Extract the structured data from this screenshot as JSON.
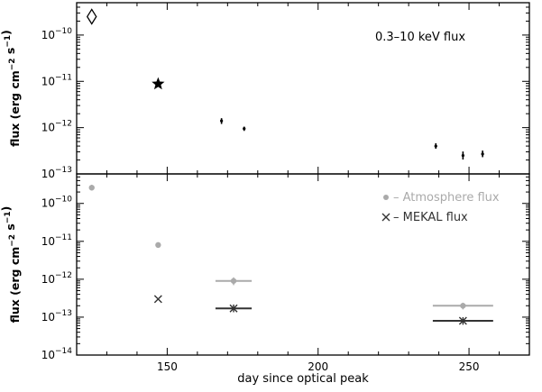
{
  "chart_data": [
    {
      "id": "top",
      "type": "scatter",
      "ylabel": "flux (erg cm⁻² s⁻¹)",
      "xlabel": "",
      "xlim": [
        120,
        270
      ],
      "ylim": [
        1e-13,
        5e-10
      ],
      "yscale": "log",
      "xticks": [
        150,
        200,
        250
      ],
      "yticks": [
        {
          "value": 1e-10,
          "label": "10⁻¹⁰"
        },
        {
          "value": 1e-11,
          "label": "10⁻¹¹"
        },
        {
          "value": 1e-12,
          "label": "10⁻¹²"
        },
        {
          "value": 1e-13,
          "label": "10⁻¹³"
        }
      ],
      "annotations": [
        {
          "text": "0.3–10 keV flux",
          "position": "top-right"
        }
      ],
      "series": [
        {
          "marker": "diamond",
          "points": [
            {
              "x": 125,
              "y": 2.5e-10
            }
          ]
        },
        {
          "marker": "star",
          "points": [
            {
              "x": 147,
              "y": 8.8e-12
            }
          ]
        },
        {
          "marker": "errorbar",
          "points": [
            {
              "x": 168,
              "y": 1.4e-12,
              "ylo": 1.2e-12,
              "yhi": 1.6e-12
            },
            {
              "x": 175.5,
              "y": 9.5e-13,
              "ylo": 8.5e-13,
              "yhi": 1.05e-12
            },
            {
              "x": 239,
              "y": 4e-13,
              "ylo": 3.5e-13,
              "yhi": 4.6e-13
            },
            {
              "x": 248,
              "y": 2.5e-13,
              "ylo": 2.05e-13,
              "yhi": 3.05e-13
            },
            {
              "x": 254.5,
              "y": 2.7e-13,
              "ylo": 2.3e-13,
              "yhi": 3.2e-13
            }
          ]
        }
      ]
    },
    {
      "id": "bottom",
      "type": "scatter",
      "ylabel": "flux (erg cm⁻² s⁻¹)",
      "xlabel": "day since optical peak",
      "xlim": [
        120,
        270
      ],
      "ylim": [
        1e-14,
        6e-10
      ],
      "yscale": "log",
      "xticks": [
        150,
        200,
        250
      ],
      "yticks": [
        {
          "value": 1e-10,
          "label": "10⁻¹⁰"
        },
        {
          "value": 1e-11,
          "label": "10⁻¹¹"
        },
        {
          "value": 1e-12,
          "label": "10⁻¹²"
        },
        {
          "value": 1e-13,
          "label": "10⁻¹³"
        },
        {
          "value": 1e-14,
          "label": "10⁻¹⁴"
        }
      ],
      "legend_position": "top-right",
      "series": [
        {
          "name": "Atmosphere flux",
          "legend_text": "– Atmosphere flux",
          "marker": "circle",
          "color": "#aaaaaa",
          "points": [
            {
              "x": 125,
              "y": 2.6e-10,
              "ylo": 2.2e-10,
              "yhi": 3.1e-10
            },
            {
              "x": 147,
              "y": 8e-12
            },
            {
              "x": 172,
              "y": 9e-13,
              "xlo": 166,
              "xhi": 178,
              "ylo": 7e-13,
              "yhi": 1.12e-12
            },
            {
              "x": 248,
              "y": 2e-13,
              "xlo": 238,
              "xhi": 258,
              "ylo": 1.6e-13,
              "yhi": 2.4e-13
            }
          ]
        },
        {
          "name": "MEKAL flux",
          "legend_text": "– MEKAL flux",
          "marker": "x",
          "color": "#333333",
          "points": [
            {
              "x": 147,
              "y": 3e-13
            },
            {
              "x": 172,
              "y": 1.7e-13,
              "xlo": 166,
              "xhi": 178,
              "ylo": 1.35e-13,
              "yhi": 2.15e-13
            },
            {
              "x": 248,
              "y": 8e-14,
              "xlo": 238,
              "xhi": 258,
              "ylo": 6.3e-14,
              "yhi": 1e-13
            }
          ]
        }
      ]
    }
  ]
}
